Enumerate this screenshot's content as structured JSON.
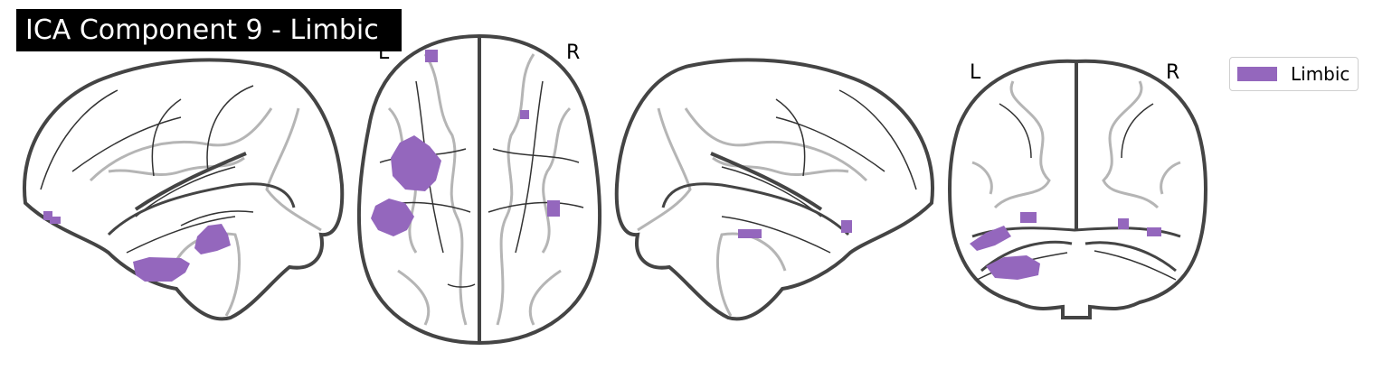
{
  "title": "ICA Component 9 - Limbic",
  "orientation_labels": {
    "axial_left": "L",
    "axial_right": "R",
    "coronal_left": "L",
    "coronal_right": "R"
  },
  "legend": {
    "label": "Limbic",
    "color": "#9467bd"
  },
  "colors": {
    "outline": "#444444",
    "sulci": "#b5b5b5",
    "lines": "#333333",
    "blob": "#9467bd"
  }
}
